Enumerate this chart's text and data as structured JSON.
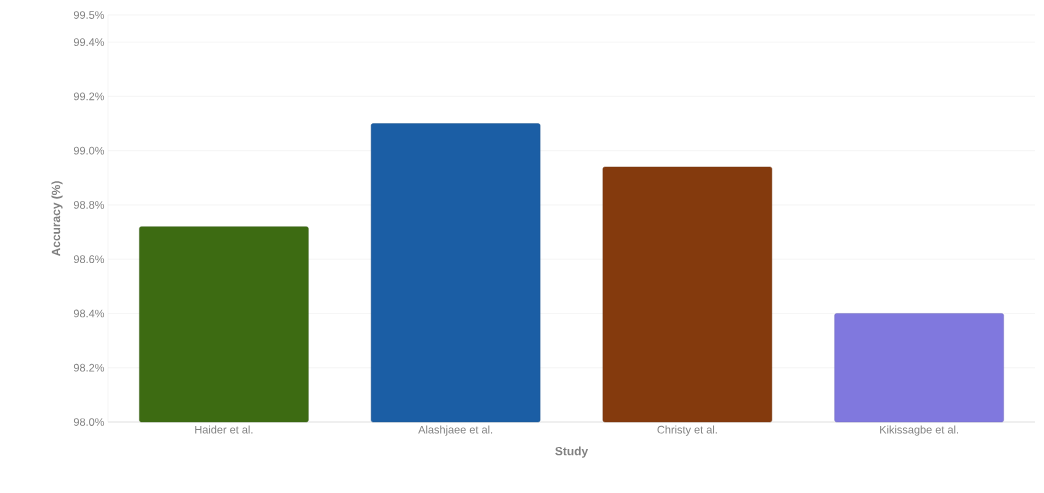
{
  "chart_data": {
    "type": "bar",
    "xlabel": "Study",
    "ylabel": "Accuracy (%)",
    "categories": [
      "Haider et al.",
      "Alashjaee et al.",
      "Christy et al.",
      "Kikissagbe et al."
    ],
    "values": [
      98.72,
      99.1,
      98.94,
      98.4
    ],
    "colors": [
      "#3d6b12",
      "#1b5ea5",
      "#843a0d",
      "#8078de"
    ],
    "ylim": [
      98.0,
      99.5
    ],
    "yticks": [
      {
        "value": 98.0,
        "label": "98.0%"
      },
      {
        "value": 98.2,
        "label": "98.2%"
      },
      {
        "value": 98.4,
        "label": "98.4%"
      },
      {
        "value": 98.6,
        "label": "98.6%"
      },
      {
        "value": 98.8,
        "label": "98.8%"
      },
      {
        "value": 99.0,
        "label": "99.0%"
      },
      {
        "value": 99.2,
        "label": "99.2%"
      },
      {
        "value": 99.4,
        "label": "99.4%"
      },
      {
        "value": 99.5,
        "label": "99.5%"
      }
    ],
    "grid": "y"
  }
}
